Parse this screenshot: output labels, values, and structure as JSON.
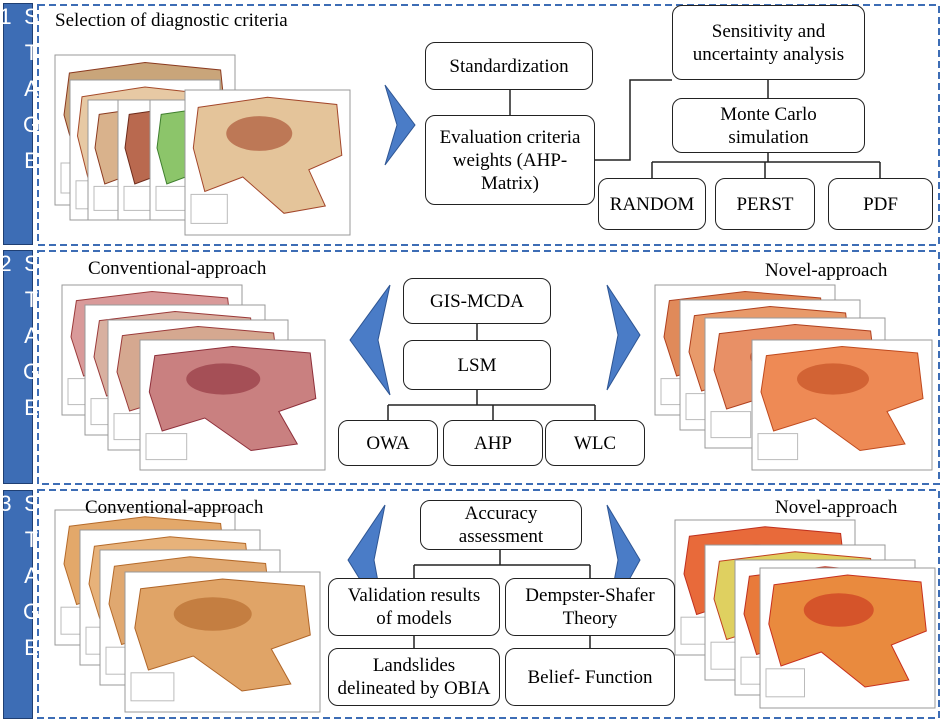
{
  "stages": [
    {
      "label": "STAGE 1",
      "title": "Selection of diagnostic criteria",
      "boxes": [
        {
          "lines": [
            "Standardization"
          ]
        },
        {
          "lines": [
            "Evaluation criteria",
            "weights (AHP-",
            "Matrix)"
          ]
        },
        {
          "lines": [
            "Sensitivity and",
            "uncertainty analysis"
          ]
        },
        {
          "lines": [
            "Monte Carlo",
            "simulation"
          ]
        },
        {
          "lines": [
            "RANDOM"
          ]
        },
        {
          "lines": [
            "PERST"
          ]
        },
        {
          "lines": [
            "PDF"
          ]
        }
      ]
    },
    {
      "label": "STAGE 2",
      "title_left": "Conventional-approach",
      "title_right": "Novel-approach",
      "boxes": [
        {
          "lines": [
            "GIS-MCDA"
          ]
        },
        {
          "lines": [
            "LSM"
          ]
        },
        {
          "lines": [
            "OWA"
          ]
        },
        {
          "lines": [
            "AHP"
          ]
        },
        {
          "lines": [
            "WLC"
          ]
        }
      ]
    },
    {
      "label": "STAGE 3",
      "title_left": "Conventional-approach",
      "title_right": "Novel-approach",
      "boxes": [
        {
          "lines": [
            "Accuracy",
            "assessment"
          ]
        },
        {
          "lines": [
            "Validation results",
            "of models"
          ]
        },
        {
          "lines": [
            "Dempster-Shafer",
            "Theory"
          ]
        },
        {
          "lines": [
            "Landslides",
            "delineated by OBIA"
          ]
        },
        {
          "lines": [
            "Belief- Function"
          ]
        }
      ]
    }
  ]
}
